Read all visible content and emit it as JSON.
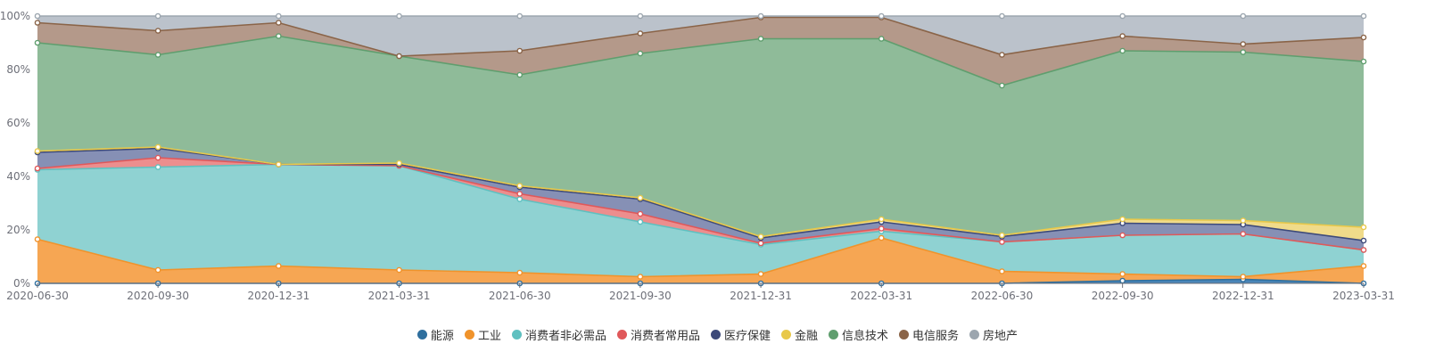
{
  "chart_data": {
    "type": "area",
    "stacked": true,
    "percent": true,
    "x": [
      "2020-06-30",
      "2020-09-30",
      "2020-12-31",
      "2021-03-31",
      "2021-06-30",
      "2021-09-30",
      "2021-12-31",
      "2022-03-31",
      "2022-06-30",
      "2022-09-30",
      "2022-12-31",
      "2023-03-31"
    ],
    "ylim": [
      0,
      100
    ],
    "yticks": [
      "0%",
      "20%",
      "40%",
      "60%",
      "80%",
      "100%"
    ],
    "legend_position": "bottom-center",
    "series": [
      {
        "name": "能源",
        "color": "#2f6f9e",
        "fill": "#4a86b8",
        "values": [
          0,
          0,
          0,
          0,
          0,
          0,
          0,
          0,
          0,
          1,
          1.5,
          0
        ]
      },
      {
        "name": "工业",
        "color": "#f0932b",
        "fill": "#f6a653",
        "values": [
          16.5,
          5,
          6.5,
          5,
          4,
          2.5,
          3.5,
          17,
          4.5,
          2.5,
          1,
          6.5
        ]
      },
      {
        "name": "消费者非必需品",
        "color": "#5fc0c0",
        "fill": "#8fd2d2",
        "values": [
          26,
          38.5,
          38,
          39,
          27.5,
          20.5,
          11,
          2.5,
          11,
          14.5,
          16,
          6
        ]
      },
      {
        "name": "消费者常用品",
        "color": "#e0585a",
        "fill": "#ec8e8e",
        "values": [
          0.5,
          3.5,
          0,
          0,
          2,
          3,
          0.5,
          1,
          0,
          0,
          0,
          0
        ]
      },
      {
        "name": "医疗保健",
        "color": "#3d4a7a",
        "fill": "#8690b5",
        "values": [
          6,
          3.5,
          0,
          0.5,
          2.5,
          5.5,
          2,
          2.5,
          2,
          4.5,
          3.5,
          3.5
        ]
      },
      {
        "name": "金融",
        "color": "#e8c84a",
        "fill": "#f0db8a",
        "values": [
          0.5,
          0.5,
          0,
          0.5,
          0.5,
          0.5,
          0.5,
          1,
          0.5,
          1.5,
          1.5,
          5
        ]
      },
      {
        "name": "信息技术",
        "color": "#5f9e6e",
        "fill": "#8fbb99",
        "values": [
          40.5,
          34.5,
          48,
          40,
          41.5,
          54,
          74,
          67.5,
          56,
          63,
          63,
          62
        ]
      },
      {
        "name": "电信服务",
        "color": "#8a6448",
        "fill": "#b4998a",
        "values": [
          7.5,
          9,
          5,
          0,
          9,
          7.5,
          8,
          8,
          11.5,
          5.5,
          3,
          9
        ]
      },
      {
        "name": "房地产",
        "color": "#9ca6af",
        "fill": "#bbc2cb",
        "values": [
          2.5,
          5.5,
          2.5,
          15,
          13,
          6.5,
          0.5,
          0.5,
          14.5,
          7.5,
          10.5,
          8
        ]
      }
    ]
  }
}
